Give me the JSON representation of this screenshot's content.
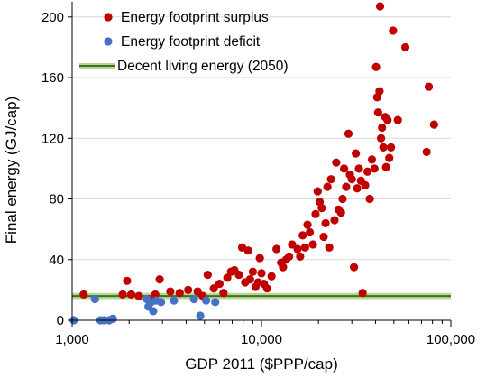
{
  "chart_data": {
    "type": "scatter",
    "xlabel": "GDP 2011 ($PPP/cap)",
    "ylabel": "Final energy (GJ/cap)",
    "x_scale": "log",
    "xlim": [
      1000,
      100000
    ],
    "ylim": [
      0,
      210
    ],
    "x_ticks": [
      1000,
      10000,
      100000
    ],
    "x_tick_labels": [
      "1,000",
      "10,000",
      "100,000"
    ],
    "y_ticks": [
      0,
      40,
      80,
      120,
      160,
      200
    ],
    "y_tick_labels": [
      "0",
      "40",
      "80",
      "120",
      "160",
      "200"
    ],
    "grid": "horizontal",
    "legend_position": "top-left",
    "reference_line": {
      "name": "Decent living energy (2050)",
      "y": 16,
      "band": [
        14,
        18
      ],
      "color": "#3c6e2a",
      "band_color": "#b9d78e"
    },
    "series": [
      {
        "name": "Energy footprint surplus",
        "color": "#c00000",
        "points": [
          [
            1150,
            17
          ],
          [
            1850,
            17
          ],
          [
            1950,
            26
          ],
          [
            2050,
            17
          ],
          [
            2250,
            16
          ],
          [
            2550,
            14
          ],
          [
            2750,
            17
          ],
          [
            2900,
            27
          ],
          [
            3300,
            19
          ],
          [
            3700,
            18
          ],
          [
            4100,
            20
          ],
          [
            4600,
            19
          ],
          [
            4900,
            16
          ],
          [
            5200,
            30
          ],
          [
            5600,
            21
          ],
          [
            6000,
            24
          ],
          [
            6300,
            18
          ],
          [
            6600,
            28
          ],
          [
            6900,
            32
          ],
          [
            7200,
            33
          ],
          [
            7600,
            30
          ],
          [
            7900,
            48
          ],
          [
            8200,
            25
          ],
          [
            8500,
            46
          ],
          [
            8700,
            27
          ],
          [
            9000,
            32
          ],
          [
            9300,
            22
          ],
          [
            9600,
            25
          ],
          [
            9800,
            41
          ],
          [
            10000,
            31
          ],
          [
            10300,
            24
          ],
          [
            10700,
            21
          ],
          [
            11300,
            29
          ],
          [
            12000,
            47
          ],
          [
            12700,
            38
          ],
          [
            13000,
            35
          ],
          [
            13500,
            40
          ],
          [
            14000,
            42
          ],
          [
            14500,
            50
          ],
          [
            15500,
            47
          ],
          [
            16000,
            42
          ],
          [
            16500,
            56
          ],
          [
            17000,
            48
          ],
          [
            17500,
            63
          ],
          [
            18000,
            58
          ],
          [
            18700,
            50
          ],
          [
            19300,
            70
          ],
          [
            19800,
            85
          ],
          [
            20300,
            78
          ],
          [
            20800,
            74
          ],
          [
            21300,
            55
          ],
          [
            21800,
            64
          ],
          [
            22300,
            88
          ],
          [
            22800,
            48
          ],
          [
            23300,
            93
          ],
          [
            24300,
            66
          ],
          [
            24800,
            104
          ],
          [
            25500,
            73
          ],
          [
            26300,
            71
          ],
          [
            26800,
            80
          ],
          [
            27300,
            100
          ],
          [
            28000,
            88
          ],
          [
            28800,
            123
          ],
          [
            29300,
            96
          ],
          [
            30000,
            93
          ],
          [
            30800,
            35
          ],
          [
            31500,
            110
          ],
          [
            32000,
            87
          ],
          [
            32700,
            100
          ],
          [
            33500,
            92
          ],
          [
            34200,
            18
          ],
          [
            35300,
            89
          ],
          [
            36300,
            98
          ],
          [
            37300,
            80
          ],
          [
            38300,
            106
          ],
          [
            39500,
            100
          ],
          [
            40300,
            167
          ],
          [
            40800,
            147
          ],
          [
            41300,
            137
          ],
          [
            42000,
            151
          ],
          [
            42300,
            207
          ],
          [
            42800,
            120
          ],
          [
            43300,
            127
          ],
          [
            44000,
            114
          ],
          [
            45000,
            134
          ],
          [
            45500,
            101
          ],
          [
            46300,
            132
          ],
          [
            47300,
            107
          ],
          [
            48300,
            114
          ],
          [
            49500,
            191
          ],
          [
            52500,
            132
          ],
          [
            57500,
            180
          ],
          [
            74500,
            111
          ],
          [
            76500,
            154
          ],
          [
            81500,
            129
          ]
        ]
      },
      {
        "name": "Energy footprint deficit",
        "color": "#4472c4",
        "points": [
          [
            1020,
            0
          ],
          [
            1320,
            14
          ],
          [
            1410,
            0
          ],
          [
            1480,
            0
          ],
          [
            1570,
            0
          ],
          [
            1640,
            1
          ],
          [
            2480,
            14
          ],
          [
            2530,
            9
          ],
          [
            2610,
            12
          ],
          [
            2680,
            6
          ],
          [
            2770,
            13
          ],
          [
            2950,
            12
          ],
          [
            3450,
            13
          ],
          [
            4400,
            14
          ],
          [
            4750,
            3
          ],
          [
            5100,
            13
          ],
          [
            5700,
            12
          ]
        ]
      }
    ]
  }
}
